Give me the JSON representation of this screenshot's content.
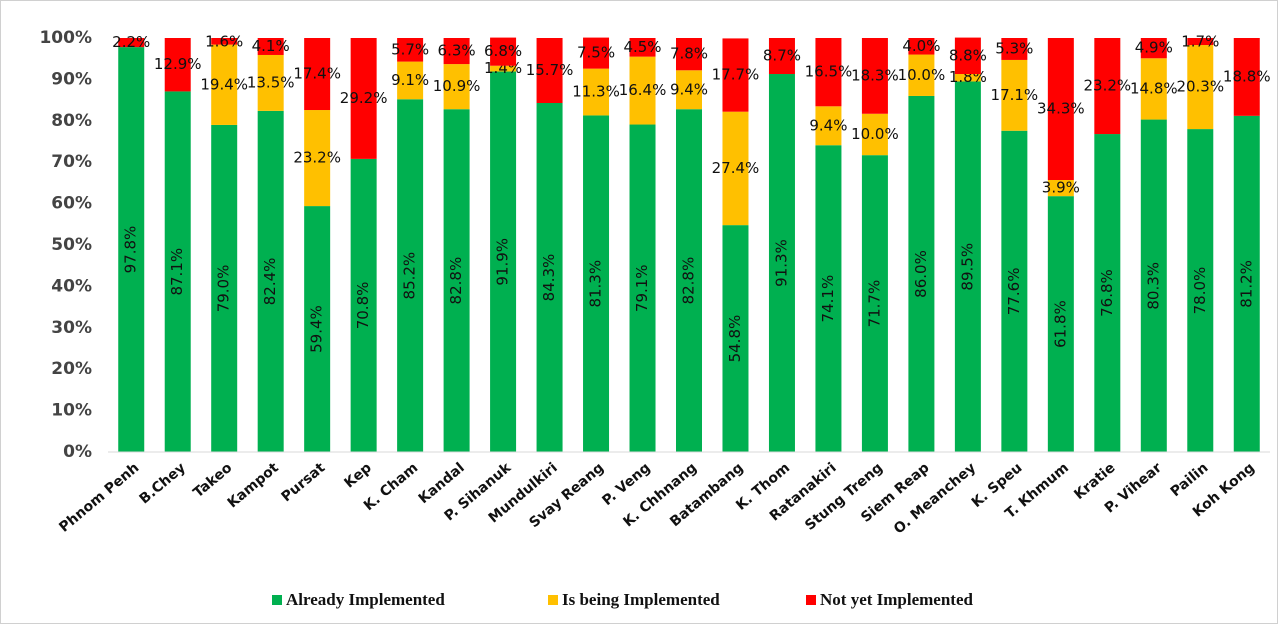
{
  "chart_data": {
    "type": "stacked_bar",
    "categories": [
      "Phnom Penh",
      "B.Chey",
      "Takeo",
      "Kampot",
      "Pursat",
      "Kep",
      "K. Cham",
      "Kandal",
      "P. Sihanuk",
      "Mundulkiri",
      "Svay Reang",
      "P. Veng",
      "K. Chhnang",
      "Batambang",
      "K. Thom",
      "Ratanakiri",
      "Stung Treng",
      "Siem Reap",
      "O. Meanchey",
      "K. Speu",
      "T. Khmum",
      "Kratie",
      "P. Vihear",
      "Pailin",
      "Koh Kong"
    ],
    "series": [
      {
        "name": "Already Implemented",
        "color": "#00b050",
        "values": [
          97.8,
          87.1,
          79.0,
          82.4,
          59.4,
          70.8,
          85.2,
          82.8,
          91.9,
          84.3,
          81.3,
          79.1,
          82.8,
          54.8,
          91.3,
          74.1,
          71.7,
          86.0,
          89.5,
          77.6,
          61.8,
          76.8,
          80.3,
          78.0,
          81.2
        ],
        "value_labels": [
          "97.8%",
          "87.1%",
          "79.0%",
          "82.4%",
          "59.4%",
          "70.8%",
          "85.2%",
          "82.8%",
          "91.9%",
          "84.3%",
          "81.3%",
          "79.1%",
          "82.8%",
          "54.8%",
          "91.3%",
          "74.1%",
          "71.7%",
          "86.0%",
          "89.5%",
          "77.6%",
          "61.8%",
          "76.8%",
          "80.3%",
          "78.0%",
          "81.2%"
        ]
      },
      {
        "name": "Is being Implemented",
        "color": "#ffc000",
        "values": [
          null,
          null,
          19.4,
          13.5,
          23.2,
          null,
          9.1,
          10.9,
          1.4,
          null,
          11.3,
          16.4,
          9.4,
          27.4,
          null,
          9.4,
          10.0,
          10.0,
          1.8,
          17.1,
          3.9,
          null,
          14.8,
          20.3,
          null
        ],
        "value_labels": [
          null,
          null,
          "19.4%",
          "13.5%",
          "23.2%",
          null,
          "9.1%",
          "10.9%",
          "1.4%",
          null,
          "11.3%",
          "16.4%",
          "9.4%",
          "27.4%",
          null,
          "9.4%",
          "10.0%",
          "10.0%",
          "1.8%",
          "17.1%",
          "3.9%",
          null,
          "14.8%",
          "20.3%",
          null
        ]
      },
      {
        "name": "Not yet Implemented",
        "color": "#ff0000",
        "values": [
          2.2,
          12.9,
          1.6,
          4.1,
          17.4,
          29.2,
          5.7,
          6.3,
          6.8,
          15.7,
          7.5,
          4.5,
          7.8,
          17.7,
          8.7,
          16.5,
          18.3,
          4.0,
          8.8,
          5.3,
          34.3,
          23.2,
          4.9,
          1.7,
          18.8
        ],
        "value_labels": [
          "2.2%",
          "12.9%",
          "1.6%",
          "4.1%",
          "17.4%",
          "29.2%",
          "5.7%",
          "6.3%",
          "6.8%",
          "15.7%",
          "7.5%",
          "4.5%",
          "7.8%",
          "17.7%",
          "8.7%",
          "16.5%",
          "18.3%",
          "4.0%",
          "8.8%",
          "5.3%",
          "34.3%",
          "23.2%",
          "4.9%",
          "1.7%",
          "18.8%"
        ]
      }
    ],
    "ylim": [
      0,
      100
    ],
    "yticks": [
      {
        "value": 0,
        "label": "0%"
      },
      {
        "value": 10,
        "label": "10%"
      },
      {
        "value": 20,
        "label": "20%"
      },
      {
        "value": 30,
        "label": "30%"
      },
      {
        "value": 40,
        "label": "40%"
      },
      {
        "value": 50,
        "label": "50%"
      },
      {
        "value": 60,
        "label": "60%"
      },
      {
        "value": 70,
        "label": "70%"
      },
      {
        "value": 80,
        "label": "80%"
      },
      {
        "value": 90,
        "label": "90%"
      },
      {
        "value": 100,
        "label": "100%"
      }
    ],
    "legend": "bottom"
  }
}
